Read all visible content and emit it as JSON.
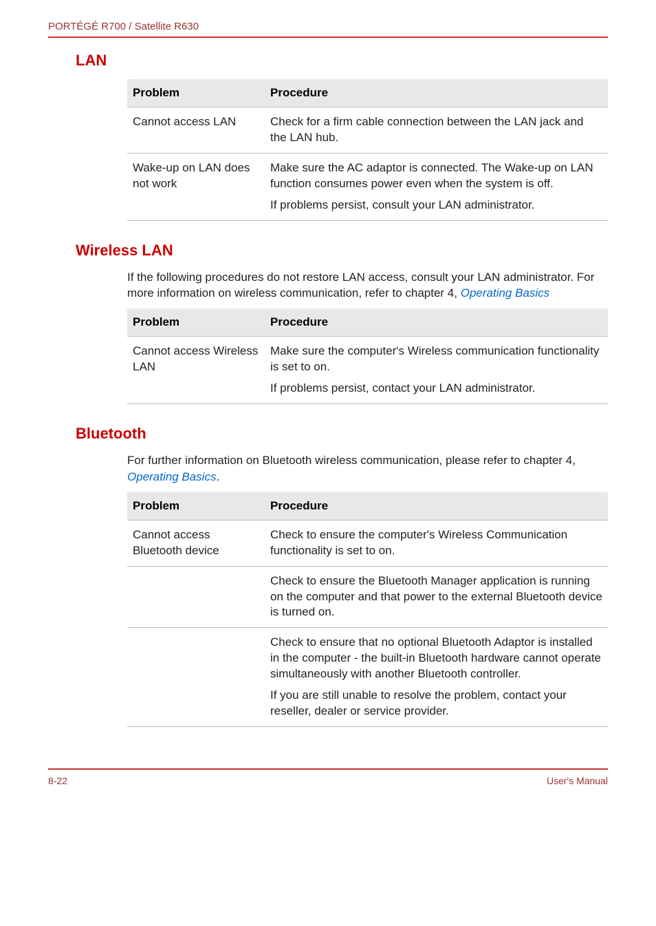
{
  "colors": {
    "accent": "#cc0000",
    "header_text": "#993333",
    "rule": "#cc3333",
    "link": "#0066cc",
    "th_bg": "#e8e8e8",
    "border": "#bbbbbb",
    "body_text": "#222222"
  },
  "typography": {
    "body_fontsize_pt": 12,
    "section_title_fontsize_pt": 16,
    "header_fontsize_pt": 11,
    "footer_fontsize_pt": 10
  },
  "header": {
    "model_line": "PORTÉGÉ R700 / Satellite R630"
  },
  "sections": [
    {
      "key": "lan",
      "title": "LAN",
      "intro": null,
      "intro_link": null,
      "table": {
        "headers": {
          "problem": "Problem",
          "procedure": "Procedure"
        },
        "rows": [
          {
            "problem": "Cannot access LAN",
            "procedure_paras": [
              "Check for a firm cable connection between the LAN jack and the LAN hub."
            ]
          },
          {
            "problem": "Wake-up on LAN does not work",
            "procedure_paras": [
              "Make sure the AC adaptor is connected. The Wake-up on LAN function consumes power even when the system is off.",
              "If problems persist, consult your LAN administrator."
            ]
          }
        ]
      }
    },
    {
      "key": "wlan",
      "title": "Wireless LAN",
      "intro": "If the following procedures do not restore LAN access, consult your LAN administrator. For more information on wireless communication, refer to chapter 4, ",
      "intro_link": "Operating Basics",
      "intro_suffix": "",
      "table": {
        "headers": {
          "problem": "Problem",
          "procedure": "Procedure"
        },
        "rows": [
          {
            "problem": "Cannot access Wireless LAN",
            "procedure_paras": [
              "Make sure the computer's Wireless communication functionality is set to on.",
              "If problems persist, contact your LAN administrator."
            ]
          }
        ]
      }
    },
    {
      "key": "bt",
      "title": "Bluetooth",
      "intro": "For further information on Bluetooth wireless communication, please refer to chapter 4, ",
      "intro_link": "Operating Basics",
      "intro_suffix": ".",
      "table": {
        "headers": {
          "problem": "Problem",
          "procedure": "Procedure"
        },
        "rows": [
          {
            "problem": "Cannot access Bluetooth device",
            "procedure_paras": [
              "Check to ensure the computer's Wireless Communication functionality is set to on."
            ]
          },
          {
            "problem": "",
            "procedure_paras": [
              "Check to ensure the Bluetooth Manager application is running on the computer and that power to the external Bluetooth device is turned on."
            ]
          },
          {
            "problem": "",
            "procedure_paras": [
              "Check to ensure that no optional Bluetooth Adaptor is installed in the computer - the built-in Bluetooth hardware cannot operate simultaneously with another Bluetooth controller.",
              "If you are still unable to resolve the problem, contact your reseller, dealer or service provider."
            ]
          }
        ]
      }
    }
  ],
  "footer": {
    "left": "8-22",
    "right": "User's Manual"
  }
}
